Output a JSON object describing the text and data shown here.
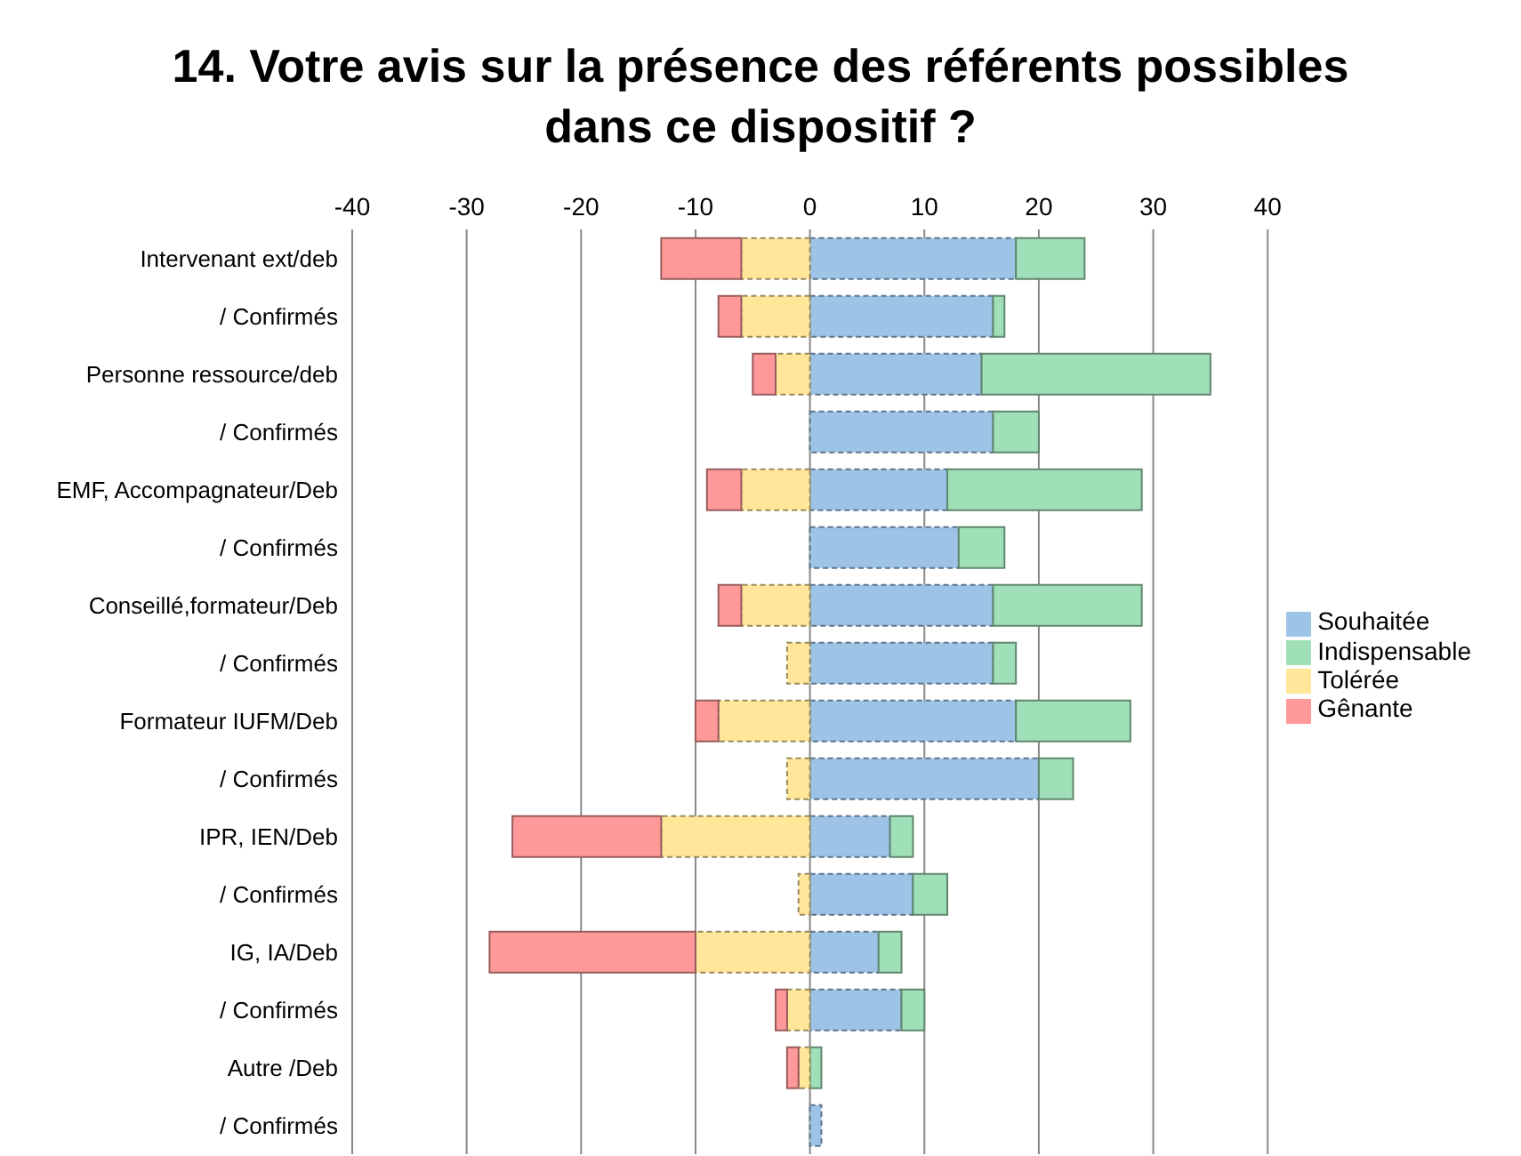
{
  "chart_data": {
    "type": "bar",
    "orientation": "horizontal",
    "stacked": true,
    "title": "14. Votre avis sur la présence des référents possibles dans ce dispositif ?",
    "categories": [
      "Intervenant ext/deb",
      "/ Confirmés",
      "Personne ressource/deb",
      "/ Confirmés",
      "EMF, Accompagnateur/Deb",
      "/ Confirmés",
      "Conseillé,formateur/Deb",
      "/ Confirmés",
      "Formateur IUFM/Deb",
      "/ Confirmés",
      "IPR, IEN/Deb",
      "/ Confirmés",
      "IG, IA/Deb",
      "/ Confirmés",
      "Autre /Deb",
      "/ Confirmés"
    ],
    "series": [
      {
        "name": "Souhaitée",
        "color": "#9dc3e6",
        "values": [
          18,
          16,
          15,
          16,
          12,
          13,
          16,
          16,
          18,
          20,
          7,
          9,
          6,
          8,
          0,
          1
        ]
      },
      {
        "name": "Indispensable",
        "color": "#a0e0b8",
        "values": [
          6,
          1,
          20,
          4,
          17,
          4,
          13,
          2,
          10,
          3,
          2,
          3,
          2,
          2,
          1,
          0
        ]
      },
      {
        "name": "Tolérée",
        "color": "#ffe699",
        "values": [
          -6,
          -6,
          -3,
          0,
          -6,
          0,
          -6,
          -2,
          -8,
          -2,
          -13,
          -1,
          -10,
          -2,
          -1,
          0
        ]
      },
      {
        "name": "Gênante",
        "color": "#ff9999",
        "values": [
          -7,
          -2,
          -2,
          0,
          -3,
          0,
          -2,
          0,
          -2,
          0,
          -13,
          0,
          -18,
          -1,
          -1,
          0
        ]
      }
    ],
    "xlim": [
      -40,
      40
    ],
    "xticks": [
      -40,
      -30,
      -20,
      -10,
      0,
      10,
      20,
      30,
      40
    ],
    "grid": "x",
    "legend": "right"
  }
}
